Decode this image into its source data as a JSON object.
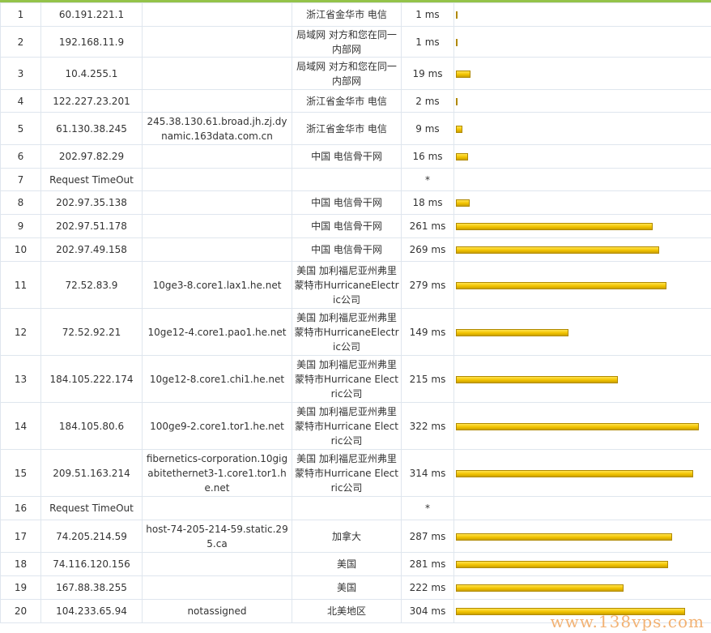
{
  "max_latency_ms": 322,
  "bar_color": "#f2c300",
  "border_color": "#dfe6ee",
  "watermark": "www.138vps.com",
  "rows": [
    {
      "hop": "1",
      "ip": "60.191.221.1",
      "host": "",
      "location": "浙江省金华市 电信",
      "latency": "1 ms",
      "ms": 1
    },
    {
      "hop": "2",
      "ip": "192.168.11.9",
      "host": "",
      "location": "局域网 对方和您在同一内部网",
      "latency": "1 ms",
      "ms": 1
    },
    {
      "hop": "3",
      "ip": "10.4.255.1",
      "host": "",
      "location": "局域网 对方和您在同一内部网",
      "latency": "19 ms",
      "ms": 19
    },
    {
      "hop": "4",
      "ip": "122.227.23.201",
      "host": "",
      "location": "浙江省金华市 电信",
      "latency": "2 ms",
      "ms": 2
    },
    {
      "hop": "5",
      "ip": "61.130.38.245",
      "host": "245.38.130.61.broad.jh.zj.dynamic.163data.com.cn",
      "location": "浙江省金华市 电信",
      "latency": "9 ms",
      "ms": 9
    },
    {
      "hop": "6",
      "ip": "202.97.82.29",
      "host": "",
      "location": "中国 电信骨干网",
      "latency": "16 ms",
      "ms": 16
    },
    {
      "hop": "7",
      "ip": "Request TimeOut",
      "host": "",
      "location": "",
      "latency": "*",
      "ms": 0
    },
    {
      "hop": "8",
      "ip": "202.97.35.138",
      "host": "",
      "location": "中国 电信骨干网",
      "latency": "18 ms",
      "ms": 18
    },
    {
      "hop": "9",
      "ip": "202.97.51.178",
      "host": "",
      "location": "中国 电信骨干网",
      "latency": "261 ms",
      "ms": 261
    },
    {
      "hop": "10",
      "ip": "202.97.49.158",
      "host": "",
      "location": "中国 电信骨干网",
      "latency": "269 ms",
      "ms": 269
    },
    {
      "hop": "11",
      "ip": "72.52.83.9",
      "host": "10ge3-8.core1.lax1.he.net",
      "location": "美国 加利福尼亚州弗里蒙特市HurricaneElectric公司",
      "latency": "279 ms",
      "ms": 279
    },
    {
      "hop": "12",
      "ip": "72.52.92.21",
      "host": "10ge12-4.core1.pao1.he.net",
      "location": "美国 加利福尼亚州弗里蒙特市HurricaneElectric公司",
      "latency": "149 ms",
      "ms": 149
    },
    {
      "hop": "13",
      "ip": "184.105.222.174",
      "host": "10ge12-8.core1.chi1.he.net",
      "location": "美国 加利福尼亚州弗里蒙特市Hurricane Electric公司",
      "latency": "215 ms",
      "ms": 215
    },
    {
      "hop": "14",
      "ip": "184.105.80.6",
      "host": "100ge9-2.core1.tor1.he.net",
      "location": "美国 加利福尼亚州弗里蒙特市Hurricane Electric公司",
      "latency": "322 ms",
      "ms": 322
    },
    {
      "hop": "15",
      "ip": "209.51.163.214",
      "host": "fibernetics-corporation.10gigabitethernet3-1.core1.tor1.he.net",
      "location": "美国 加利福尼亚州弗里蒙特市Hurricane Electric公司",
      "latency": "314 ms",
      "ms": 314
    },
    {
      "hop": "16",
      "ip": "Request TimeOut",
      "host": "",
      "location": "",
      "latency": "*",
      "ms": 0
    },
    {
      "hop": "17",
      "ip": "74.205.214.59",
      "host": "host-74-205-214-59.static.295.ca",
      "location": "加拿大",
      "latency": "287 ms",
      "ms": 287
    },
    {
      "hop": "18",
      "ip": "74.116.120.156",
      "host": "",
      "location": "美国",
      "latency": "281 ms",
      "ms": 281
    },
    {
      "hop": "19",
      "ip": "167.88.38.255",
      "host": "",
      "location": "美国",
      "latency": "222 ms",
      "ms": 222
    },
    {
      "hop": "20",
      "ip": "104.233.65.94",
      "host": "notassigned",
      "location": "北美地区",
      "latency": "304 ms",
      "ms": 304
    }
  ]
}
